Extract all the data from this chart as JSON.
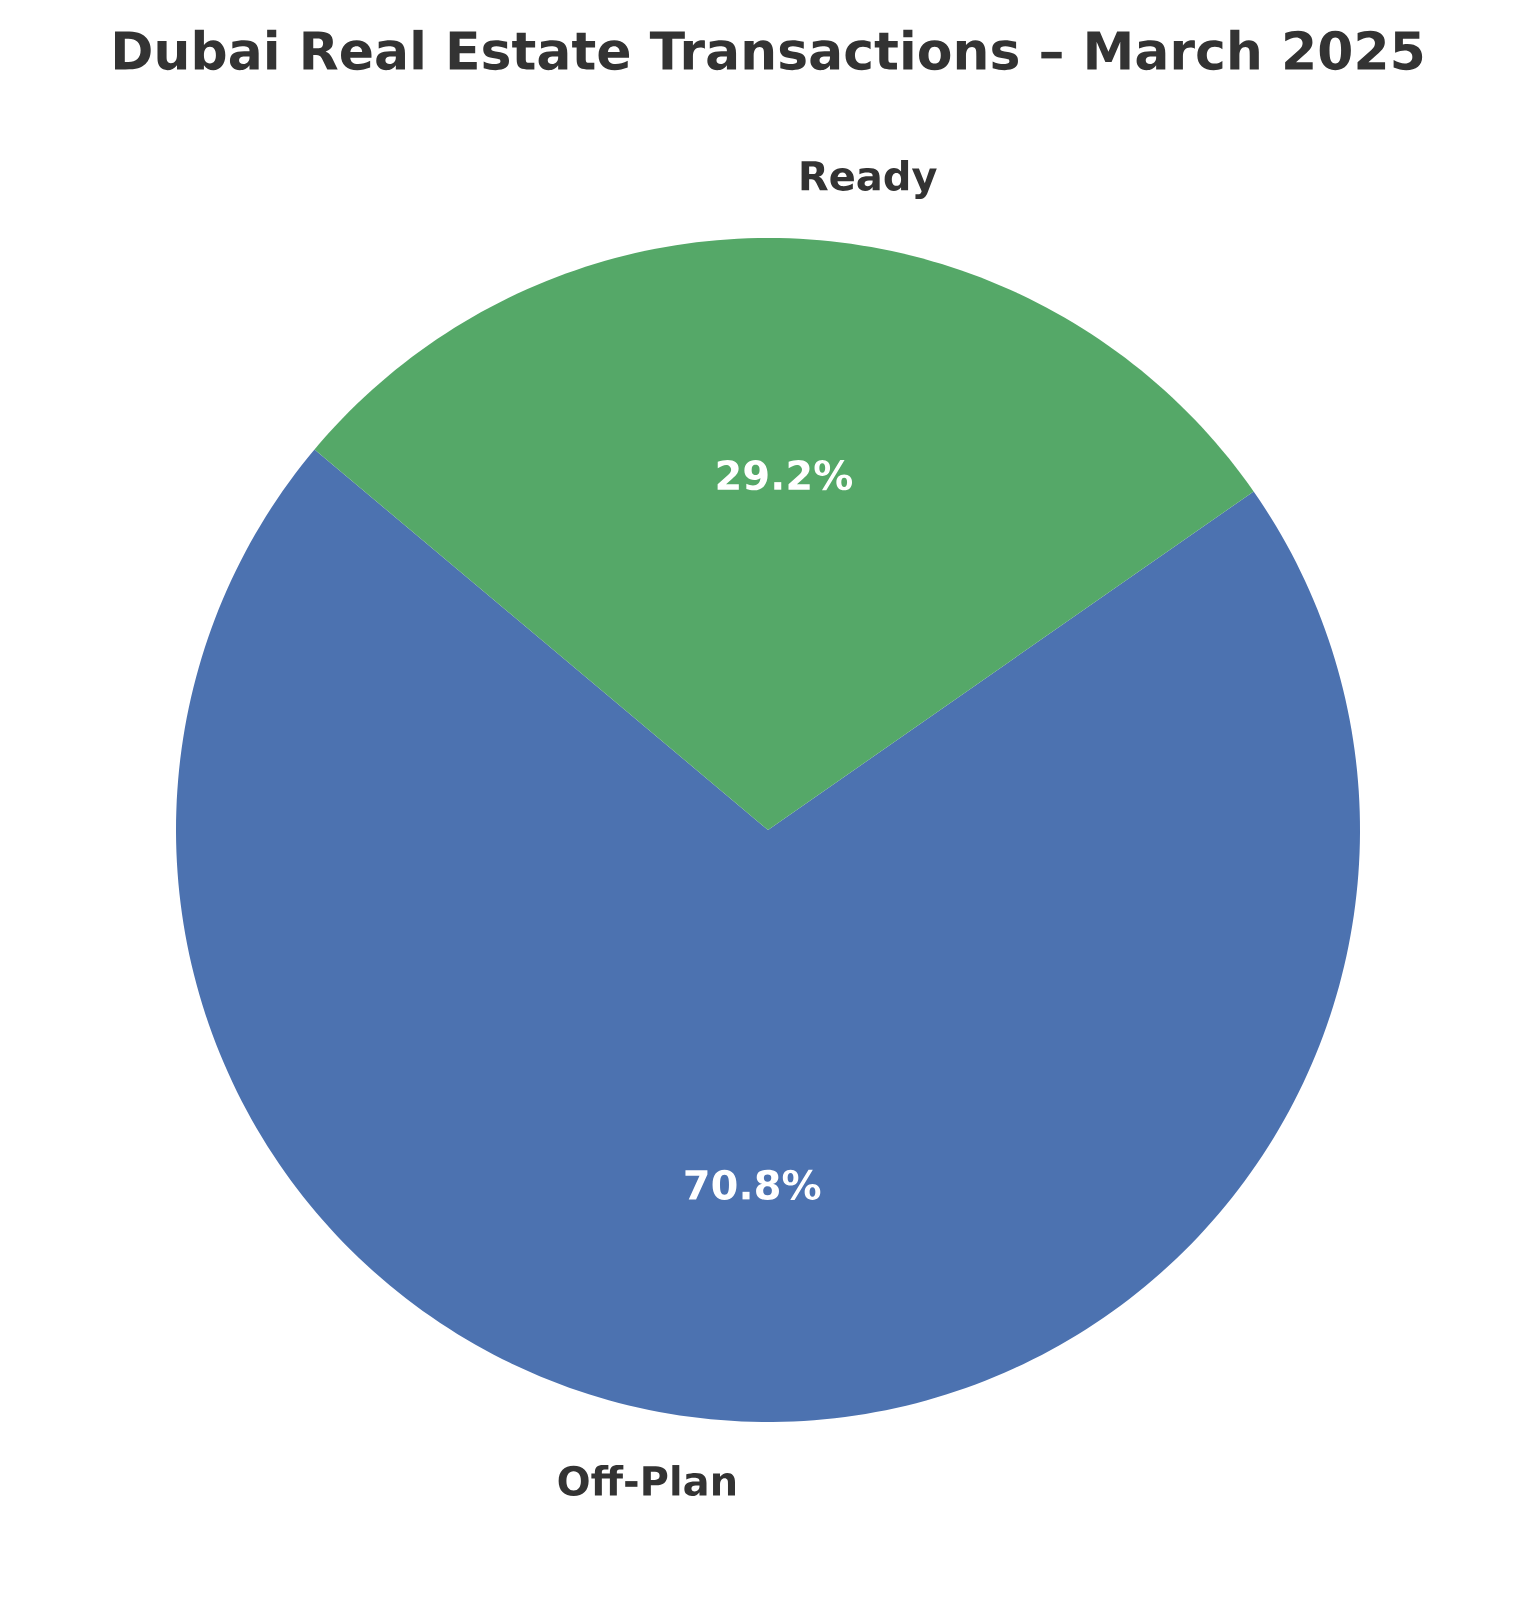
{
  "chart_data": {
    "type": "pie",
    "title": "Dubai Real Estate Transactions – March 2025",
    "categories": [
      "Off-Plan",
      "Ready"
    ],
    "values": [
      70.8,
      29.2
    ],
    "colors": [
      "#4c72b0",
      "#55a868"
    ],
    "value_labels": [
      "70.8%",
      "29.2%"
    ]
  }
}
